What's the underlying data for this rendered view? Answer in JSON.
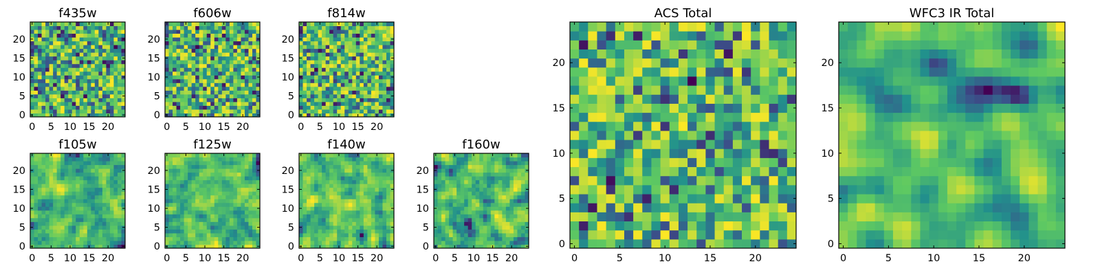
{
  "figure": {
    "colormap": "viridis",
    "colormap_stops": [
      "#440154",
      "#3b528b",
      "#21918c",
      "#5ec962",
      "#fde725"
    ]
  },
  "chart_data": [
    {
      "id": "f435w",
      "type": "heatmap",
      "title": "f435w",
      "grid_size": [
        25,
        25
      ],
      "xlim": [
        -0.5,
        24.5
      ],
      "ylim": [
        -0.5,
        24.5
      ],
      "origin": "lower",
      "xticks": [
        0,
        5,
        10,
        15,
        20
      ],
      "yticks": [
        0,
        5,
        10,
        15,
        20
      ],
      "seed": 11,
      "smooth": 0,
      "xtick_labels": [
        "0",
        "5",
        "10",
        "15",
        "20"
      ],
      "ytick_labels": [
        "0",
        "5",
        "10",
        "15",
        "20"
      ]
    },
    {
      "id": "f606w",
      "type": "heatmap",
      "title": "f606w",
      "grid_size": [
        25,
        25
      ],
      "xlim": [
        -0.5,
        24.5
      ],
      "ylim": [
        -0.5,
        24.5
      ],
      "origin": "lower",
      "xticks": [
        0,
        5,
        10,
        15,
        20
      ],
      "yticks": [
        0,
        5,
        10,
        15,
        20
      ],
      "seed": 23,
      "smooth": 0,
      "xtick_labels": [
        "0",
        "5",
        "10",
        "15",
        "20"
      ],
      "ytick_labels": [
        "0",
        "5",
        "10",
        "15",
        "20"
      ]
    },
    {
      "id": "f814w",
      "type": "heatmap",
      "title": "f814w",
      "grid_size": [
        25,
        25
      ],
      "xlim": [
        -0.5,
        24.5
      ],
      "ylim": [
        -0.5,
        24.5
      ],
      "origin": "lower",
      "xticks": [
        0,
        5,
        10,
        15,
        20
      ],
      "yticks": [
        0,
        5,
        10,
        15,
        20
      ],
      "seed": 37,
      "smooth": 0,
      "xtick_labels": [
        "0",
        "5",
        "10",
        "15",
        "20"
      ],
      "ytick_labels": [
        "0",
        "5",
        "10",
        "15",
        "20"
      ]
    },
    {
      "id": "f105w",
      "type": "heatmap",
      "title": "f105w",
      "grid_size": [
        25,
        25
      ],
      "xlim": [
        -0.5,
        24.5
      ],
      "ylim": [
        -0.5,
        24.5
      ],
      "origin": "lower",
      "xticks": [
        0,
        5,
        10,
        15,
        20
      ],
      "yticks": [
        0,
        5,
        10,
        15,
        20
      ],
      "seed": 41,
      "smooth": 1,
      "xtick_labels": [
        "0",
        "5",
        "10",
        "15",
        "20"
      ],
      "ytick_labels": [
        "0",
        "5",
        "10",
        "15",
        "20"
      ]
    },
    {
      "id": "f125w",
      "type": "heatmap",
      "title": "f125w",
      "grid_size": [
        25,
        25
      ],
      "xlim": [
        -0.5,
        24.5
      ],
      "ylim": [
        -0.5,
        24.5
      ],
      "origin": "lower",
      "xticks": [
        0,
        5,
        10,
        15,
        20
      ],
      "yticks": [
        0,
        5,
        10,
        15,
        20
      ],
      "seed": 53,
      "smooth": 1,
      "xtick_labels": [
        "0",
        "5",
        "10",
        "15",
        "20"
      ],
      "ytick_labels": [
        "0",
        "5",
        "10",
        "15",
        "20"
      ]
    },
    {
      "id": "f140w",
      "type": "heatmap",
      "title": "f140w",
      "grid_size": [
        25,
        25
      ],
      "xlim": [
        -0.5,
        24.5
      ],
      "ylim": [
        -0.5,
        24.5
      ],
      "origin": "lower",
      "xticks": [
        0,
        5,
        10,
        15,
        20
      ],
      "yticks": [
        0,
        5,
        10,
        15,
        20
      ],
      "seed": 67,
      "smooth": 1,
      "xtick_labels": [
        "0",
        "5",
        "10",
        "15",
        "20"
      ],
      "ytick_labels": [
        "0",
        "5",
        "10",
        "15",
        "20"
      ]
    },
    {
      "id": "f160w",
      "type": "heatmap",
      "title": "f160w",
      "grid_size": [
        25,
        25
      ],
      "xlim": [
        -0.5,
        24.5
      ],
      "ylim": [
        -0.5,
        24.5
      ],
      "origin": "lower",
      "xticks": [
        0,
        5,
        10,
        15,
        20
      ],
      "yticks": [
        0,
        5,
        10,
        15,
        20
      ],
      "seed": 79,
      "smooth": 1,
      "xtick_labels": [
        "0",
        "5",
        "10",
        "15",
        "20"
      ],
      "ytick_labels": [
        "0",
        "5",
        "10",
        "15",
        "20"
      ]
    },
    {
      "id": "acs-total",
      "type": "heatmap",
      "title": "ACS Total",
      "grid_size": [
        25,
        25
      ],
      "xlim": [
        -0.5,
        24.5
      ],
      "ylim": [
        -0.5,
        24.5
      ],
      "origin": "lower",
      "xticks": [
        0,
        5,
        10,
        15,
        20
      ],
      "yticks": [
        0,
        5,
        10,
        15,
        20
      ],
      "seed": 83,
      "smooth": 0,
      "xtick_labels": [
        "0",
        "5",
        "10",
        "15",
        "20"
      ],
      "ytick_labels": [
        "0",
        "5",
        "10",
        "15",
        "20"
      ]
    },
    {
      "id": "wfc3-ir-total",
      "type": "heatmap",
      "title": "WFC3 IR Total",
      "grid_size": [
        25,
        25
      ],
      "xlim": [
        -0.5,
        24.5
      ],
      "ylim": [
        -0.5,
        24.5
      ],
      "origin": "lower",
      "xticks": [
        0,
        5,
        10,
        15,
        20
      ],
      "yticks": [
        0,
        5,
        10,
        15,
        20
      ],
      "seed": 97,
      "smooth": 2,
      "xtick_labels": [
        "0",
        "5",
        "10",
        "15",
        "20"
      ],
      "ytick_labels": [
        "0",
        "5",
        "10",
        "15",
        "20"
      ]
    }
  ]
}
